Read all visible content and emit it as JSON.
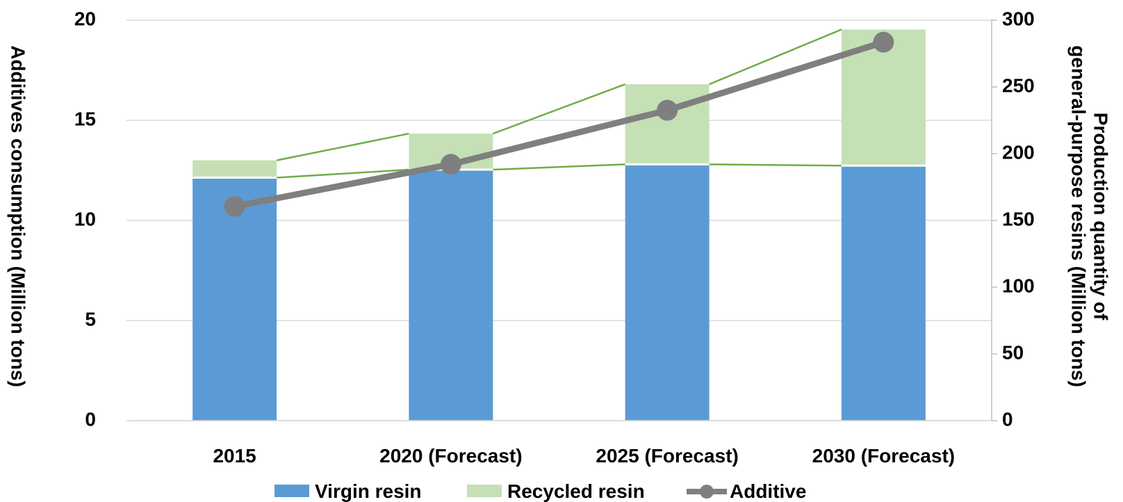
{
  "chart_data": {
    "type": "bar",
    "categories": [
      "2015",
      "2020 (Forecast)",
      "2025 (Forecast)",
      "2030 (Forecast)"
    ],
    "series": [
      {
        "name": "Virgin resin",
        "kind": "stacked-bar",
        "axis": "right",
        "color": "#5b9bd5",
        "values": [
          182,
          188,
          192,
          191
        ]
      },
      {
        "name": "Recycled resin",
        "kind": "stacked-bar",
        "axis": "right",
        "color": "#c5e0b4",
        "values": [
          13,
          27,
          60,
          102
        ]
      },
      {
        "name": "Additive",
        "kind": "line",
        "axis": "left",
        "color": "#7f7f7f",
        "values": [
          10.7,
          12.8,
          15.5,
          18.9
        ]
      }
    ],
    "y_left": {
      "label": "Additives consumption (Million tons)",
      "lim": [
        0,
        20
      ],
      "ticks": [
        "0",
        "5",
        "10",
        "15",
        "20"
      ]
    },
    "y_right": {
      "label_lines": [
        "Production quantity of",
        "general-purpose resins (Million tons)"
      ],
      "lim": [
        0,
        300
      ],
      "ticks": [
        "0",
        "50",
        "100",
        "150",
        "200",
        "250",
        "300"
      ]
    },
    "series_lines_color": "#70ad47",
    "grid": true,
    "legend_position": "bottom"
  }
}
